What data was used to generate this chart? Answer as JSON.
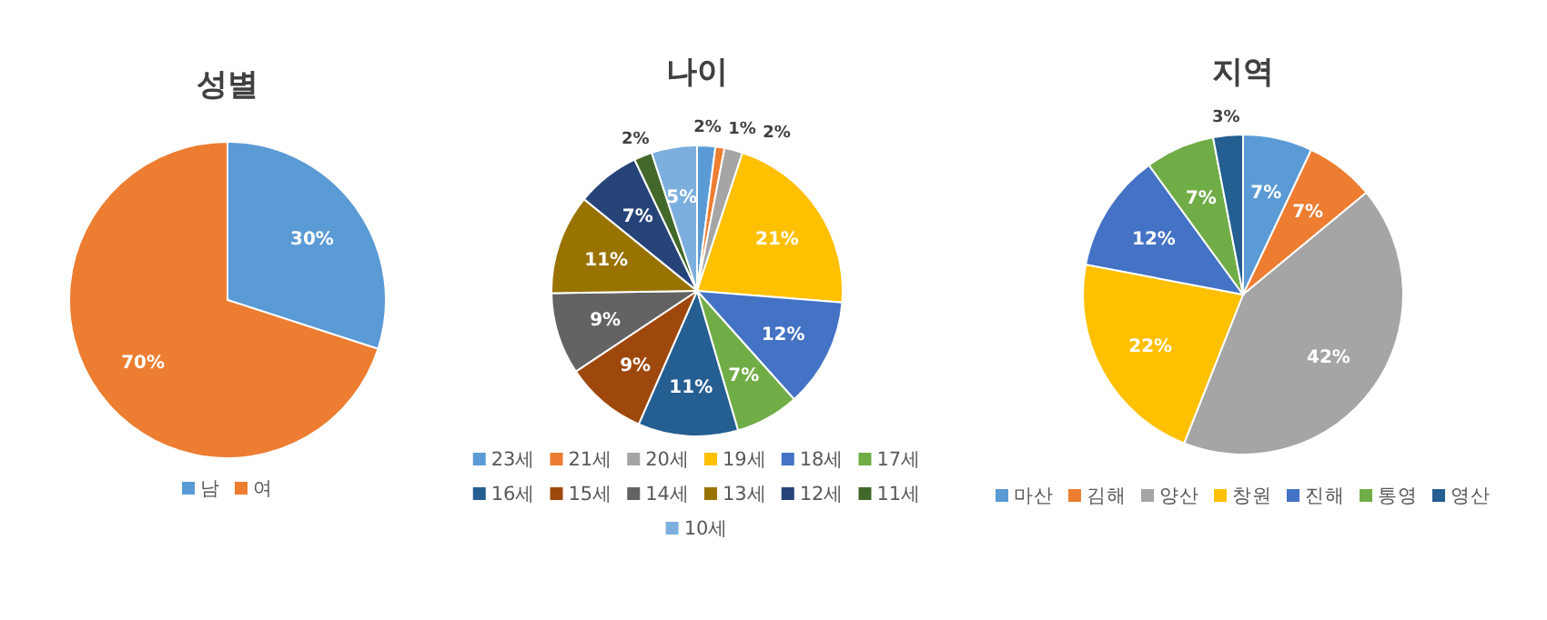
{
  "chart_data": [
    {
      "type": "pie",
      "title": "성별",
      "categories": [
        "남",
        "여"
      ],
      "values": [
        30,
        70
      ],
      "value_labels": [
        "30%",
        "70%"
      ],
      "colors": [
        "#5b9bd5",
        "#ed7d31"
      ],
      "legend": "bottom"
    },
    {
      "type": "pie",
      "title": "나이",
      "categories": [
        "23세",
        "21세",
        "20세",
        "19세",
        "18세",
        "17세",
        "16세",
        "15세",
        "14세",
        "13세",
        "12세",
        "11세",
        "10세"
      ],
      "values": [
        2,
        1,
        2,
        21,
        12,
        7,
        11,
        9,
        9,
        11,
        7,
        2,
        5
      ],
      "value_labels": [
        "2%",
        "1%",
        "2%",
        "21%",
        "12%",
        "7%",
        "11%",
        "9%",
        "9%",
        "11%",
        "7%",
        "2%",
        "5%"
      ],
      "colors": [
        "#5b9bd5",
        "#ed7d31",
        "#a5a5a5",
        "#ffc000",
        "#4472c4",
        "#70ad47",
        "#255e91",
        "#9e480e",
        "#636363",
        "#997300",
        "#264478",
        "#43682b",
        "#7cafdd"
      ],
      "legend": "bottom"
    },
    {
      "type": "pie",
      "title": "지역",
      "categories": [
        "마산",
        "김해",
        "양산",
        "창원",
        "진해",
        "통영",
        "영산"
      ],
      "values": [
        7,
        7,
        42,
        22,
        12,
        7,
        3
      ],
      "value_labels": [
        "7%",
        "7%",
        "42%",
        "22%",
        "12%",
        "7%",
        "3%"
      ],
      "colors": [
        "#5b9bd5",
        "#ed7d31",
        "#a5a5a5",
        "#ffc000",
        "#4472c4",
        "#70ad47",
        "#255e91"
      ],
      "legend": "bottom"
    }
  ]
}
